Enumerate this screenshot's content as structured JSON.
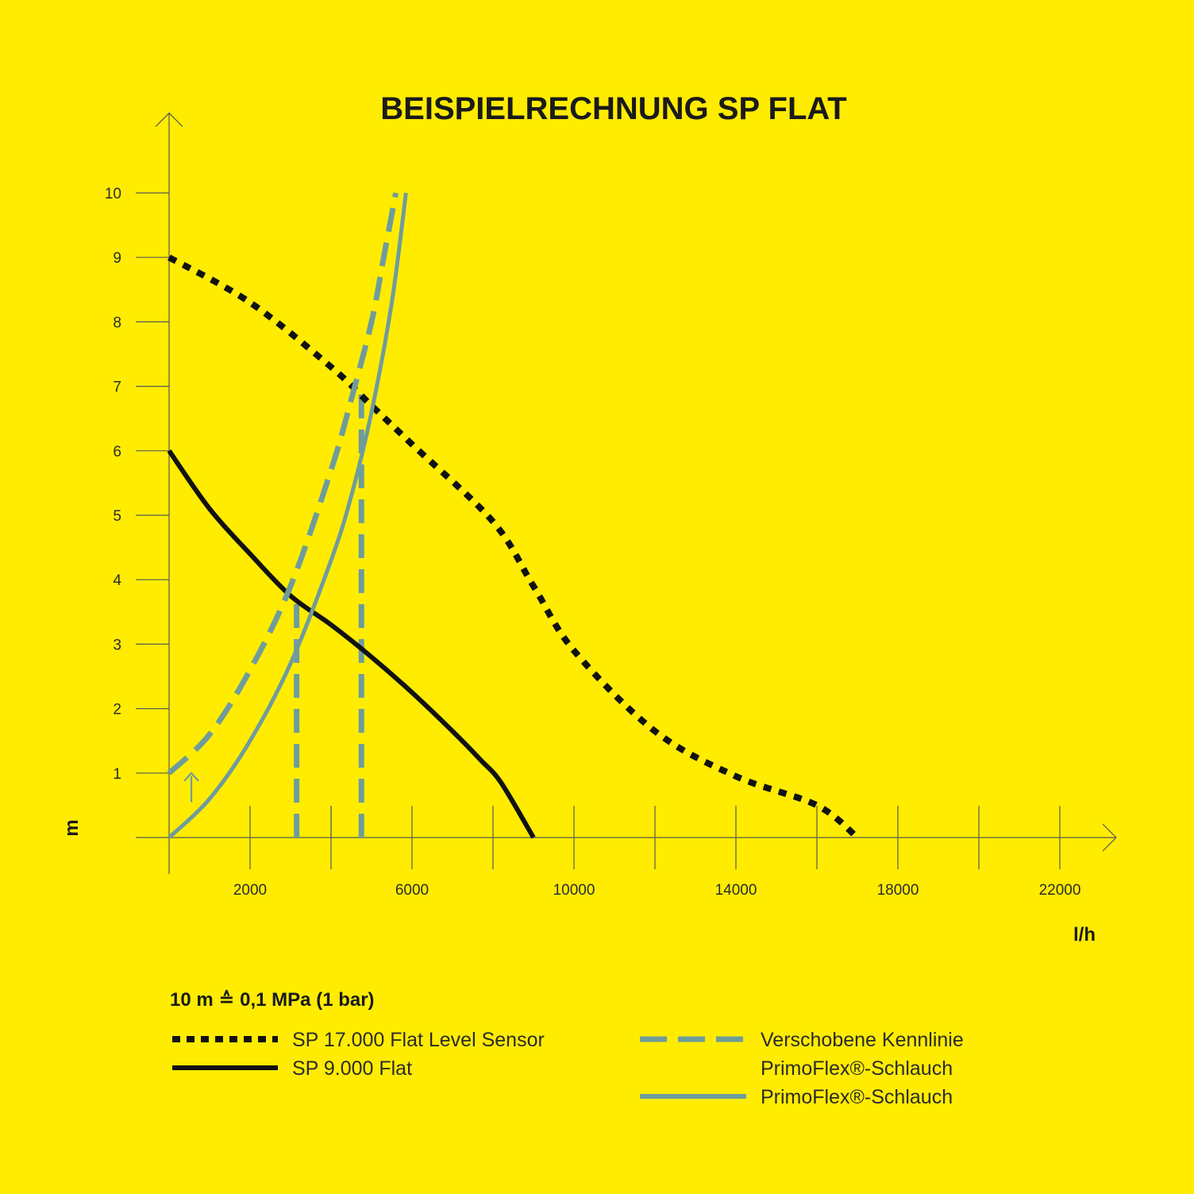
{
  "chart_data": {
    "type": "line",
    "title": "BEISPIELRECHNUNG SP FLAT",
    "xlabel": "l/h",
    "ylabel": "m",
    "xlim": [
      0,
      23000
    ],
    "ylim": [
      0,
      10.5
    ],
    "x_ticks": [
      2000,
      4000,
      6000,
      8000,
      10000,
      12000,
      14000,
      16000,
      18000,
      20000,
      22000
    ],
    "x_tick_labels": [
      "2000",
      "6000",
      "10000",
      "14000",
      "18000",
      "22000"
    ],
    "x_tick_label_values": [
      2000,
      6000,
      10000,
      14000,
      18000,
      22000
    ],
    "y_ticks": [
      1,
      2,
      3,
      4,
      5,
      6,
      7,
      8,
      9,
      10
    ],
    "y_tick_labels": [
      "1",
      "2",
      "3",
      "4",
      "5",
      "6",
      "7",
      "8",
      "9",
      "10"
    ],
    "note": "10 m ≙ 0,1 MPa (1 bar)",
    "colors": {
      "background": "#FFEC00",
      "black": "#111111",
      "teal": "#6F9C9B"
    },
    "series": [
      {
        "name": "SP 17.000 Flat Level Sensor",
        "style": "dotted",
        "color": "#111111",
        "x": [
          0,
          2000,
          4000,
          5000,
          6000,
          8000,
          9000,
          10000,
          12000,
          14000,
          16000,
          17000
        ],
        "y": [
          9.0,
          8.3,
          7.3,
          6.7,
          6.1,
          4.9,
          3.9,
          2.9,
          1.65,
          0.95,
          0.5,
          0
        ]
      },
      {
        "name": "SP 9.000 Flat",
        "style": "solid",
        "color": "#111111",
        "x": [
          0,
          1000,
          2000,
          3000,
          4000,
          5000,
          6000,
          7000,
          7700,
          8200,
          9000
        ],
        "y": [
          6.0,
          5.1,
          4.4,
          3.75,
          3.3,
          2.8,
          2.25,
          1.65,
          1.2,
          0.85,
          0
        ]
      },
      {
        "name": "Verschobene Kennlinie PrimoFlex®-Schlauch",
        "style": "dashed",
        "color": "#6F9C9B",
        "x": [
          0,
          1000,
          2000,
          3000,
          4000,
          4500,
          5000,
          5300,
          5600
        ],
        "y": [
          1.0,
          1.6,
          2.6,
          3.9,
          5.7,
          6.8,
          8.0,
          9.0,
          10.0
        ]
      },
      {
        "name": "PrimoFlex®-Schlauch",
        "style": "solid",
        "color": "#6F9C9B",
        "x": [
          0,
          1000,
          2000,
          3000,
          4000,
          4500,
          5000,
          5500,
          5850
        ],
        "y": [
          0,
          0.6,
          1.5,
          2.7,
          4.3,
          5.3,
          6.6,
          8.3,
          10.0
        ]
      }
    ],
    "guides": [
      {
        "x": 3150,
        "from_y": 0,
        "to_y": 3.75,
        "style": "dashed",
        "color": "#6F9C9B"
      },
      {
        "x": 4750,
        "from_y": 0,
        "to_y": 6.9,
        "style": "dashed",
        "color": "#6F9C9B"
      }
    ],
    "marker": {
      "type": "up-arrow",
      "x": 550,
      "from_y": 0.55,
      "to_y": 1.0,
      "color": "#6F9C9B"
    },
    "legend": {
      "placement": "bottom",
      "entries": [
        {
          "line1": "SP 17.000 Flat Level Sensor",
          "line2": "",
          "series": 0
        },
        {
          "line1": "SP 9.000 Flat",
          "line2": "",
          "series": 1
        },
        {
          "line1": "Verschobene Kennlinie",
          "line2": "PrimoFlex®-Schlauch",
          "series": 2
        },
        {
          "line1": "PrimoFlex®-Schlauch",
          "line2": "",
          "series": 3
        }
      ]
    },
    "grid": false
  }
}
